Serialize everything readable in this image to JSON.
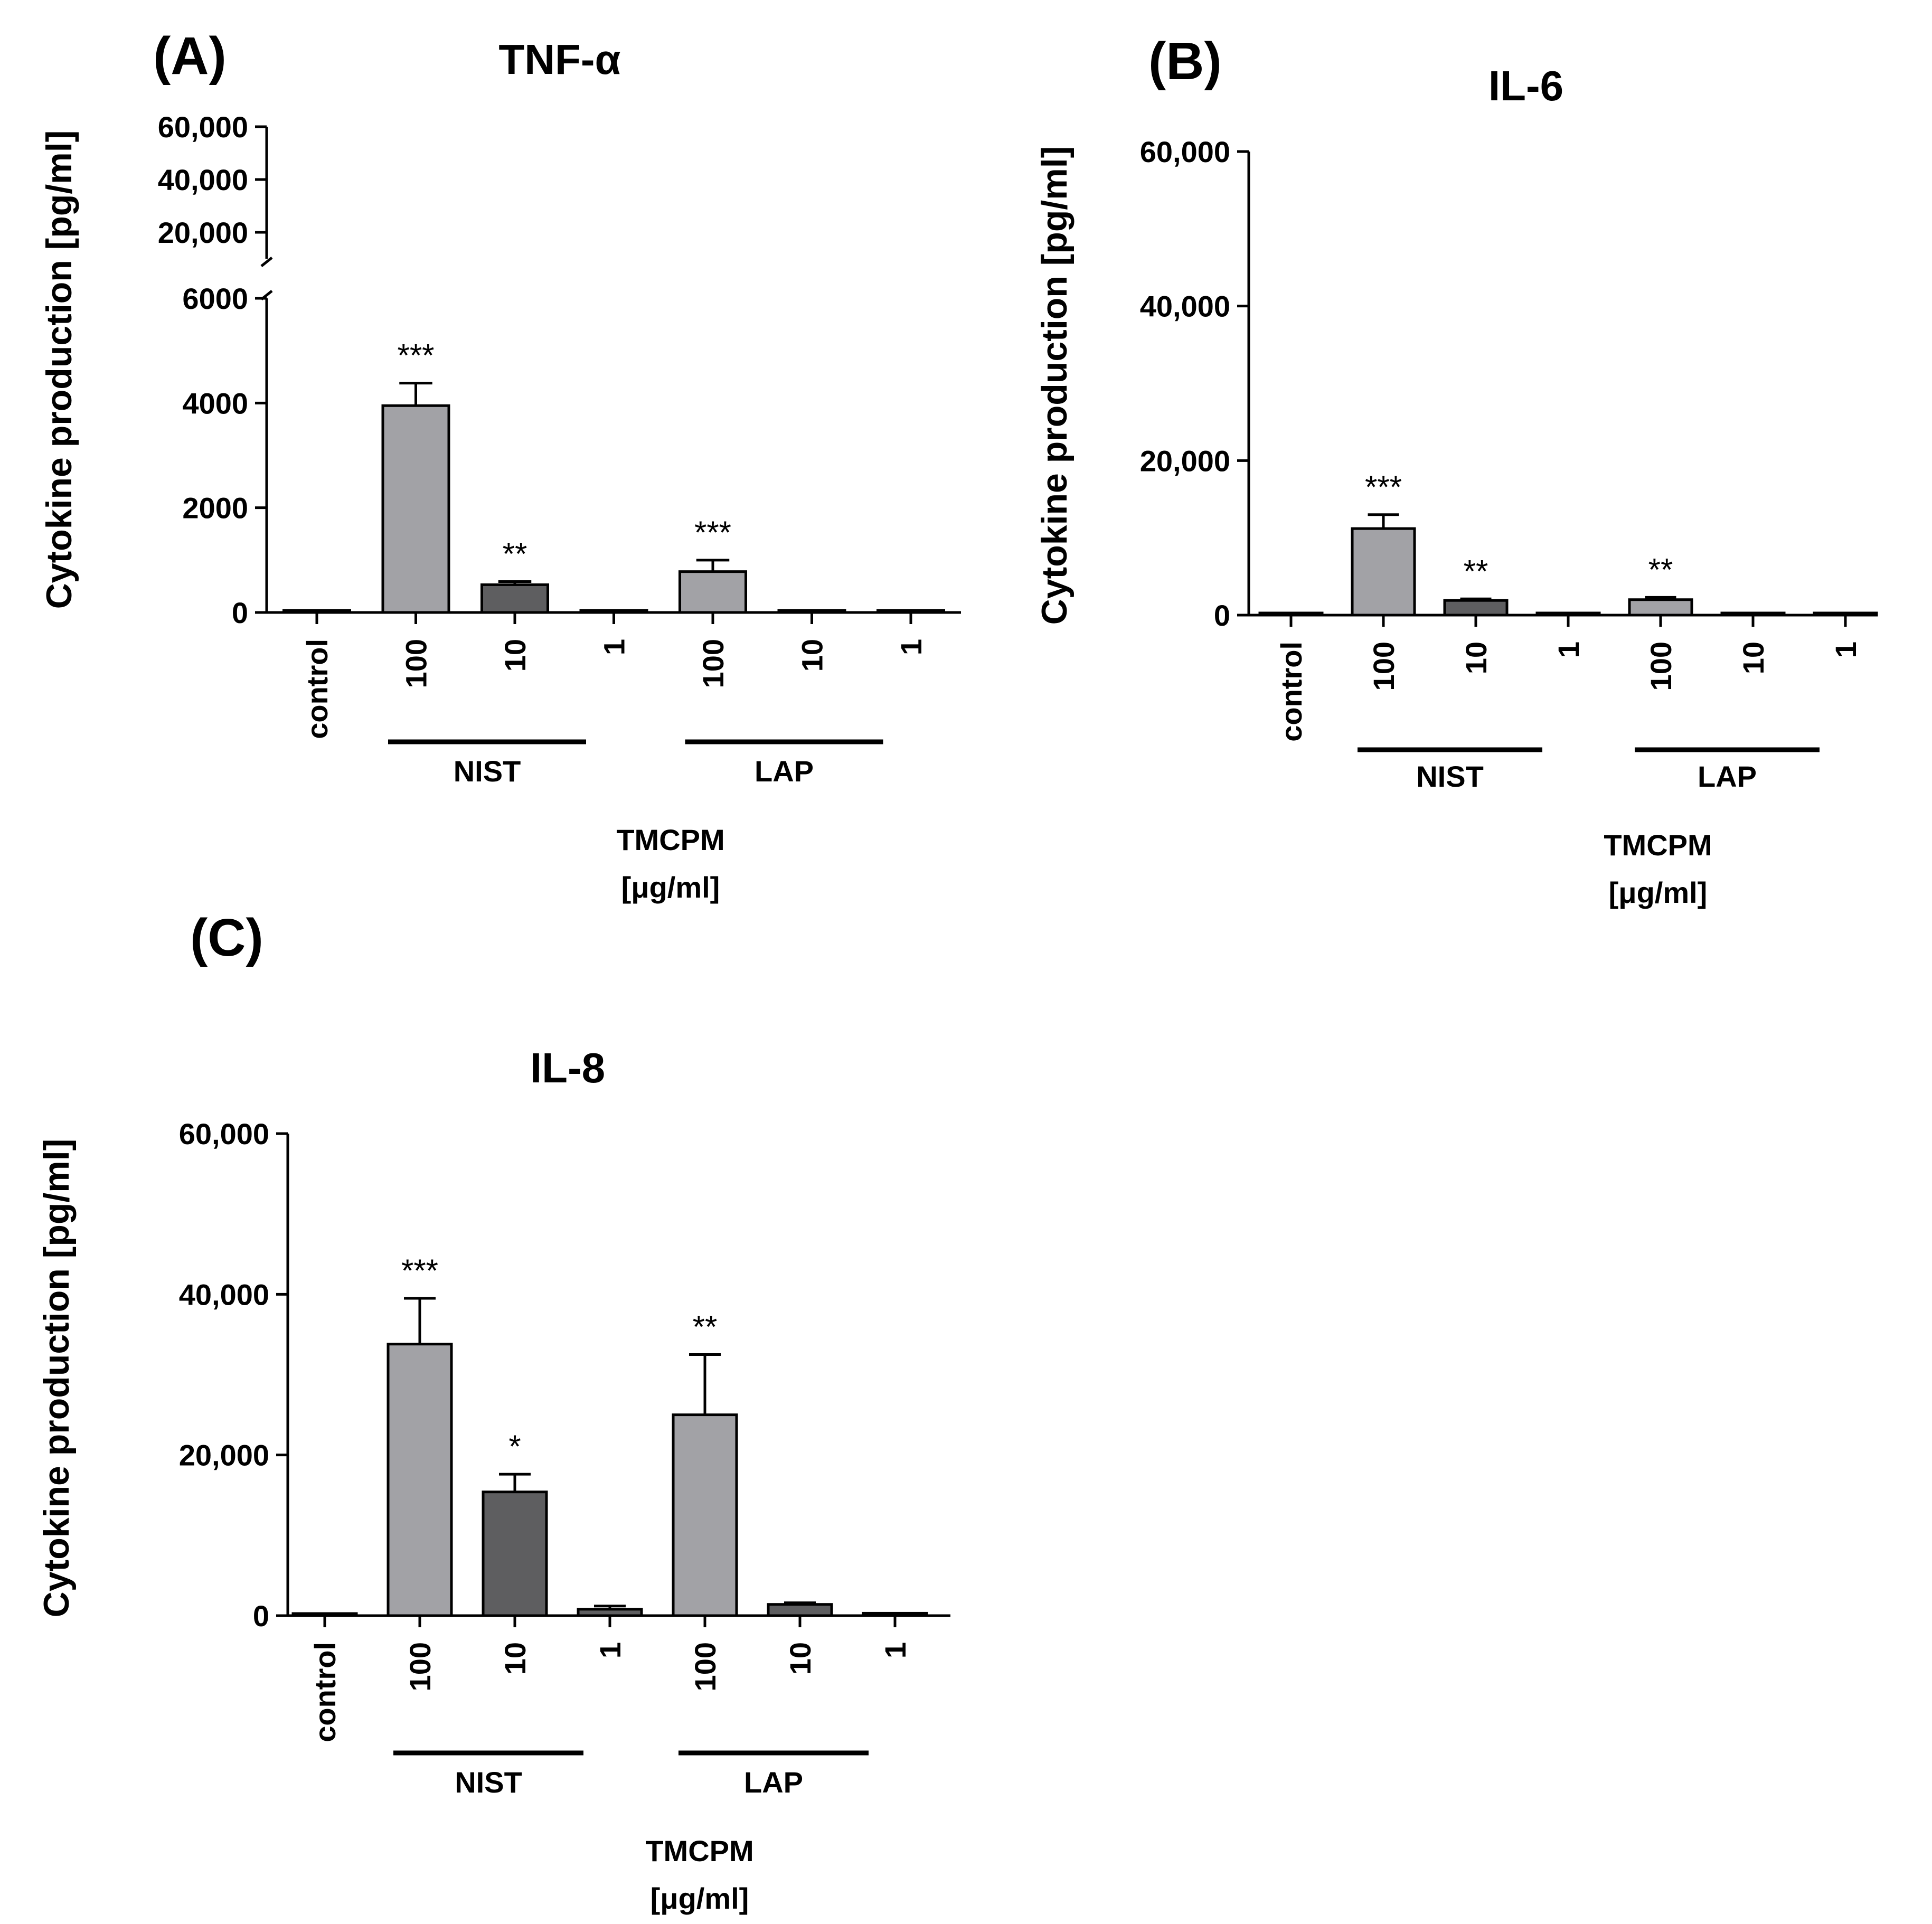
{
  "figure": {
    "colors": {
      "light": "#a2a2a6",
      "dark": "#5e5e60",
      "axis": "#000000"
    },
    "bar_shade_order": [
      "light",
      "light",
      "dark",
      "dark",
      "light",
      "dark",
      "dark"
    ]
  },
  "chart_data": [
    {
      "panel": "(A)",
      "type": "bar",
      "title": "TNF-α",
      "ylabel": "Cytokine production [pg/ml]",
      "xlabel_line1": "TMCPM",
      "xlabel_line2": "[μg/ml]",
      "categories": [
        "control",
        "100",
        "10",
        "1",
        "100",
        "10",
        "1"
      ],
      "groups": [
        {
          "name": "NIST",
          "from": 1,
          "to": 3
        },
        {
          "name": "LAP",
          "from": 4,
          "to": 6
        }
      ],
      "broken_axis": true,
      "ylim_lower": [
        0,
        6000
      ],
      "yticks_lower": [
        "0",
        "2000",
        "4000",
        "6000"
      ],
      "yticks_lower_values": [
        0,
        2000,
        4000,
        6000
      ],
      "ylim_upper": [
        10000,
        60000
      ],
      "yticks_upper": [
        "20,000",
        "40,000",
        "60,000"
      ],
      "yticks_upper_values": [
        20000,
        40000,
        60000
      ],
      "values": [
        0,
        3950,
        530,
        40,
        780,
        30,
        10
      ],
      "errors": [
        0,
        430,
        60,
        0,
        220,
        0,
        0
      ],
      "significance": [
        "",
        "***",
        "**",
        "",
        "***",
        "",
        ""
      ]
    },
    {
      "panel": "(B)",
      "type": "bar",
      "title": "IL-6",
      "ylabel": "Cytokine production [pg/ml]",
      "xlabel_line1": "TMCPM",
      "xlabel_line2": "[μg/ml]",
      "categories": [
        "control",
        "100",
        "10",
        "1",
        "100",
        "10",
        "1"
      ],
      "groups": [
        {
          "name": "NIST",
          "from": 1,
          "to": 3
        },
        {
          "name": "LAP",
          "from": 4,
          "to": 6
        }
      ],
      "ylim": [
        0,
        60000
      ],
      "yticks": [
        "0",
        "20,000",
        "40,000",
        "60,000"
      ],
      "yticks_values": [
        0,
        20000,
        40000,
        60000
      ],
      "values": [
        0,
        11200,
        1900,
        0,
        2000,
        100,
        0
      ],
      "errors": [
        0,
        1800,
        200,
        0,
        300,
        0,
        0
      ],
      "significance": [
        "",
        "***",
        "**",
        "",
        "**",
        "",
        ""
      ]
    },
    {
      "panel": "(C)",
      "type": "bar",
      "title": "IL-8",
      "ylabel": "Cytokine production [pg/ml]",
      "xlabel_line1": "TMCPM",
      "xlabel_line2": "[μg/ml]",
      "categories": [
        "control",
        "100",
        "10",
        "1",
        "100",
        "10",
        "1"
      ],
      "groups": [
        {
          "name": "NIST",
          "from": 1,
          "to": 3
        },
        {
          "name": "LAP",
          "from": 4,
          "to": 6
        }
      ],
      "ylim": [
        0,
        60000
      ],
      "yticks": [
        "0",
        "20,000",
        "40,000",
        "60,000"
      ],
      "yticks_values": [
        0,
        20000,
        40000,
        60000
      ],
      "values": [
        200,
        33800,
        15400,
        800,
        25000,
        1400,
        300
      ],
      "errors": [
        0,
        5700,
        2200,
        400,
        7500,
        200,
        0
      ],
      "significance": [
        "",
        "***",
        "*",
        "",
        "**",
        "",
        ""
      ]
    }
  ]
}
